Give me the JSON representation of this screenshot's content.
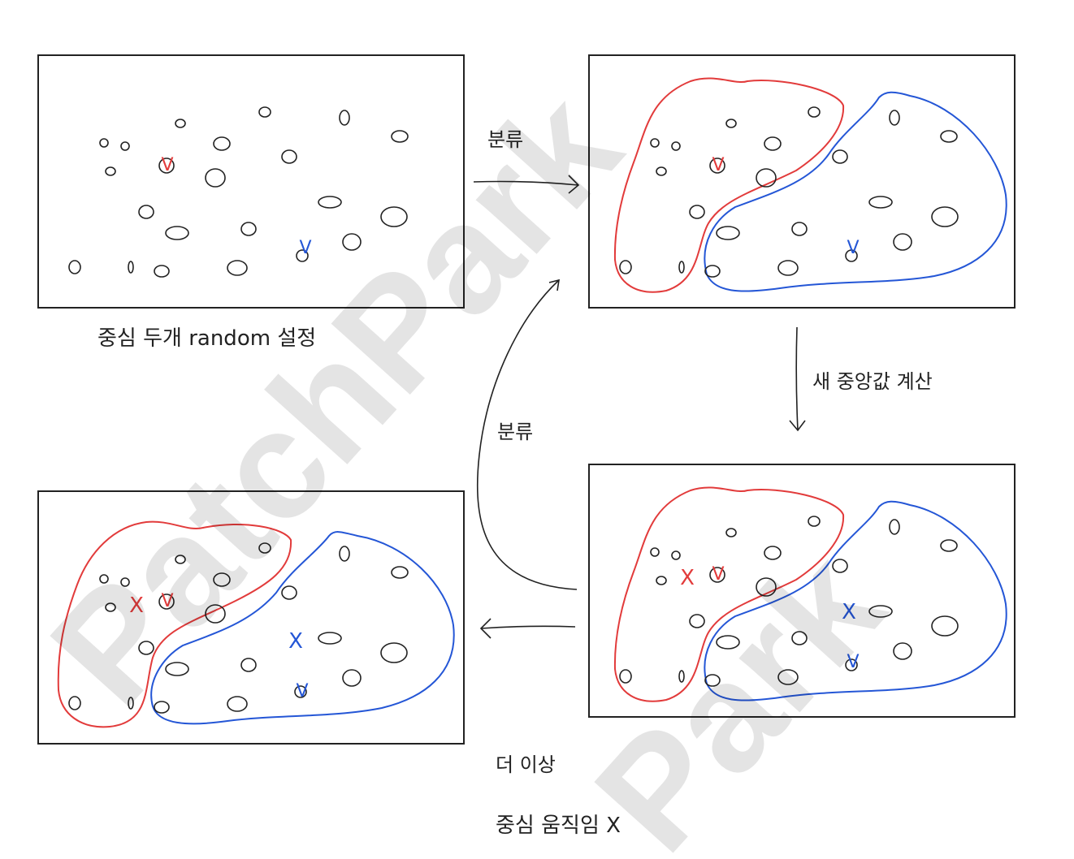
{
  "colors": {
    "ink": "#222222",
    "cluster_a": "#e23b3b",
    "cluster_b": "#2456d6",
    "watermark": "#000000"
  },
  "labels": {
    "init": "중심 두개 random 설정",
    "assign_top": "분류",
    "assign_left": "분류",
    "recompute": "새 중앙값 계산",
    "converged_line1": "더 이상",
    "converged_line2": "중심 움직임 X"
  },
  "markers": {
    "centroid": "V",
    "old_centroid": "X"
  },
  "watermark": {
    "line1": "PatchPark",
    "line2": "Park"
  }
}
